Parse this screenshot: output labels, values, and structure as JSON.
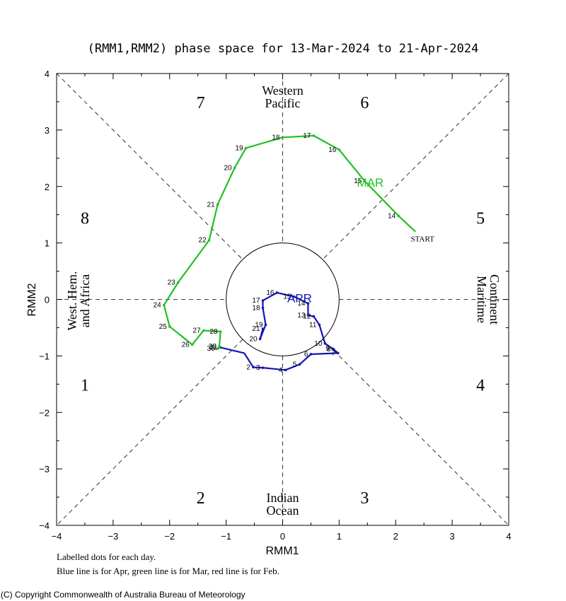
{
  "chart_data": {
    "type": "line",
    "title": "(RMM1,RMM2) phase space for 13-Mar-2024 to 21-Apr-2024",
    "xlabel": "RMM1",
    "ylabel": "RMM2",
    "xlim": [
      -4,
      4
    ],
    "ylim": [
      -4,
      4
    ],
    "x_ticks": [
      "−4",
      "−3",
      "−2",
      "−1",
      "0",
      "1",
      "2",
      "3",
      "4"
    ],
    "y_ticks": [
      "−4",
      "−3",
      "−2",
      "−1",
      "0",
      "1",
      "2",
      "3",
      "4"
    ],
    "phases": [
      {
        "label": "1",
        "x": -3.5,
        "y": -1.5
      },
      {
        "label": "2",
        "x": -1.45,
        "y": -3.5
      },
      {
        "label": "3",
        "x": 1.45,
        "y": -3.5
      },
      {
        "label": "4",
        "x": 3.5,
        "y": -1.5
      },
      {
        "label": "5",
        "x": 3.5,
        "y": 1.45
      },
      {
        "label": "6",
        "x": 1.45,
        "y": 3.5
      },
      {
        "label": "7",
        "x": -1.45,
        "y": 3.5
      },
      {
        "label": "8",
        "x": -3.5,
        "y": 1.45
      }
    ],
    "regions": {
      "top": [
        "Western",
        "Pacific"
      ],
      "bottom": [
        "Indian",
        "Ocean"
      ],
      "left": [
        "West. Hem.",
        "and Africa"
      ],
      "right": [
        "Maritime",
        "Continent"
      ]
    },
    "start_label": "START",
    "series": [
      {
        "name": "MAR",
        "color": "#22c022",
        "label_at": [
          1.55,
          2.0
        ],
        "points": [
          {
            "day": "",
            "x": 2.35,
            "y": 1.2
          },
          {
            "day": "14",
            "x": 2.05,
            "y": 1.48
          },
          {
            "day": "15",
            "x": 1.45,
            "y": 2.1
          },
          {
            "day": "16",
            "x": 1.0,
            "y": 2.65
          },
          {
            "day": "17",
            "x": 0.55,
            "y": 2.9
          },
          {
            "day": "18",
            "x": 0.0,
            "y": 2.87
          },
          {
            "day": "19",
            "x": -0.65,
            "y": 2.68
          },
          {
            "day": "20",
            "x": -0.85,
            "y": 2.33
          },
          {
            "day": "21",
            "x": -1.15,
            "y": 1.68
          },
          {
            "day": "22",
            "x": -1.3,
            "y": 1.05
          },
          {
            "day": "23",
            "x": -1.85,
            "y": 0.3
          },
          {
            "day": "24",
            "x": -2.1,
            "y": -0.1
          },
          {
            "day": "25",
            "x": -2.0,
            "y": -0.48
          },
          {
            "day": "26",
            "x": -1.6,
            "y": -0.8
          },
          {
            "day": "27",
            "x": -1.4,
            "y": -0.55
          },
          {
            "day": "28",
            "x": -1.1,
            "y": -0.57
          },
          {
            "day": "29",
            "x": -1.12,
            "y": -0.83
          },
          {
            "day": "30",
            "x": -1.15,
            "y": -0.87
          },
          {
            "day": "31",
            "x": -1.1,
            "y": -0.85
          }
        ]
      },
      {
        "name": "APR",
        "color": "#1414b4",
        "label_at": [
          0.3,
          -0.05
        ],
        "points": [
          {
            "day": "",
            "x": -1.1,
            "y": -0.85
          },
          {
            "day": "",
            "x": -0.68,
            "y": -0.95
          },
          {
            "day": "2",
            "x": -0.52,
            "y": -1.2
          },
          {
            "day": "3",
            "x": -0.35,
            "y": -1.21
          },
          {
            "day": "4",
            "x": 0.05,
            "y": -1.25
          },
          {
            "day": "5",
            "x": 0.3,
            "y": -1.15
          },
          {
            "day": "6",
            "x": 0.5,
            "y": -0.97
          },
          {
            "day": "7",
            "x": 0.98,
            "y": -0.95
          },
          {
            "day": "8",
            "x": 0.9,
            "y": -0.88
          },
          {
            "day": "9",
            "x": 0.88,
            "y": -0.87
          },
          {
            "day": "10",
            "x": 0.75,
            "y": -0.78
          },
          {
            "day": "11",
            "x": 0.65,
            "y": -0.45
          },
          {
            "day": "12",
            "x": 0.55,
            "y": -0.3
          },
          {
            "day": "13",
            "x": 0.45,
            "y": -0.28
          },
          {
            "day": "14",
            "x": 0.45,
            "y": -0.07
          },
          {
            "day": "15",
            "x": 0.2,
            "y": 0.05
          },
          {
            "day": "16",
            "x": -0.1,
            "y": 0.12
          },
          {
            "day": "17",
            "x": -0.35,
            "y": -0.02
          },
          {
            "day": "18",
            "x": -0.35,
            "y": -0.15
          },
          {
            "day": "19",
            "x": -0.3,
            "y": -0.45
          },
          {
            "day": "20",
            "x": -0.4,
            "y": -0.7
          },
          {
            "day": "21",
            "x": -0.35,
            "y": -0.52
          }
        ]
      }
    ]
  },
  "footnotes": {
    "line1": "Labelled dots for each day.",
    "line2": "Blue line is for Apr, green line is for Mar, red line is for Feb.",
    "copyright": "(C) Copyright Commonwealth of Australia Bureau of Meteorology"
  }
}
